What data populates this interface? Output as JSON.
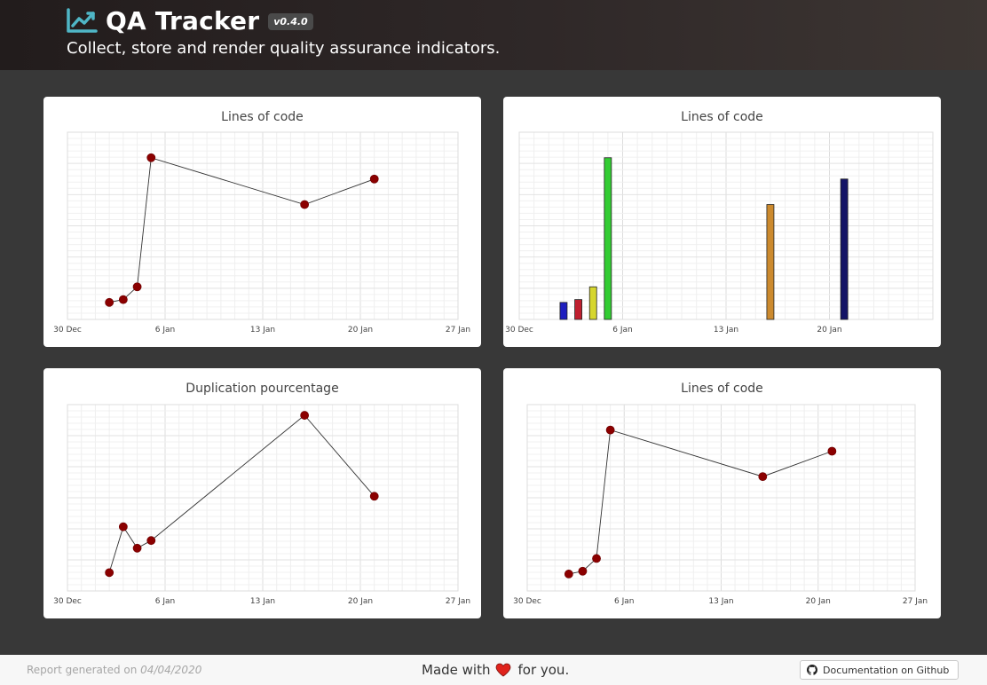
{
  "header": {
    "title": "QA Tracker",
    "version": "v0.4.0",
    "subtitle": "Collect, store and render quality assurance indicators.",
    "icon": "chart-line-icon"
  },
  "footer": {
    "report_prefix": "Report generated on",
    "report_date": "04/04/2020",
    "made_with_prefix": "Made with",
    "made_with_suffix": "for you.",
    "doc_button_label": "Documentation on Github",
    "heart_color": "#e0231c"
  },
  "chart_data": [
    {
      "type": "line",
      "title": "Lines of code",
      "x_ticks": [
        "30 Dec",
        "6 Jan",
        "13 Jan",
        "20 Jan",
        "27 Jan"
      ],
      "xlim": [
        "2019-12-30",
        "2020-01-27"
      ],
      "grid": true,
      "point_color": "#8b0000",
      "series": [
        {
          "x": [
            "2020-01-02",
            "2020-01-03",
            "2020-01-04",
            "2020-01-05",
            "2020-01-16",
            "2020-01-21"
          ],
          "values": [
            2,
            4,
            13,
            104,
            71,
            89
          ]
        }
      ],
      "ylim": [
        -10,
        122
      ]
    },
    {
      "type": "bar",
      "title": "Lines of code",
      "x_ticks": [
        "30 Dec",
        "6 Jan",
        "13 Jan",
        "20 Jan"
      ],
      "xlim": [
        "2019-12-30",
        "2020-01-27"
      ],
      "grid": true,
      "series": [
        {
          "x": [
            "2020-01-02",
            "2020-01-03",
            "2020-01-04",
            "2020-01-05",
            "2020-01-16",
            "2020-01-21"
          ],
          "values": [
            2,
            4,
            13,
            104,
            71,
            89
          ],
          "colors": [
            "#1f1fbf",
            "#bf1f2f",
            "#d6d62e",
            "#33cc33",
            "#cc8a2e",
            "#141466"
          ]
        }
      ],
      "ylim": [
        -10,
        122
      ]
    },
    {
      "type": "line",
      "title": "Duplication pourcentage",
      "x_ticks": [
        "30 Dec",
        "6 Jan",
        "13 Jan",
        "20 Jan",
        "27 Jan"
      ],
      "xlim": [
        "2019-12-30",
        "2020-01-27"
      ],
      "grid": true,
      "point_color": "#8b0000",
      "series": [
        {
          "x": [
            "2020-01-02",
            "2020-01-03",
            "2020-01-04",
            "2020-01-05",
            "2020-01-16",
            "2020-01-21"
          ],
          "values": [
            1.2,
            4.2,
            2.8,
            3.3,
            11.5,
            6.2
          ]
        }
      ],
      "ylim": [
        0,
        12.2
      ]
    },
    {
      "type": "line",
      "title": "Lines of code",
      "x_ticks": [
        "30 Dec",
        "6 Jan",
        "13 Jan",
        "20 Jan",
        "27 Jan"
      ],
      "xlim": [
        "2019-12-30",
        "2020-01-27"
      ],
      "grid": true,
      "point_color": "#8b0000",
      "series": [
        {
          "x": [
            "2020-01-02",
            "2020-01-03",
            "2020-01-04",
            "2020-01-05",
            "2020-01-16",
            "2020-01-21"
          ],
          "values": [
            2,
            4,
            13,
            104,
            71,
            89
          ]
        }
      ],
      "ylim": [
        -10,
        122
      ]
    }
  ]
}
